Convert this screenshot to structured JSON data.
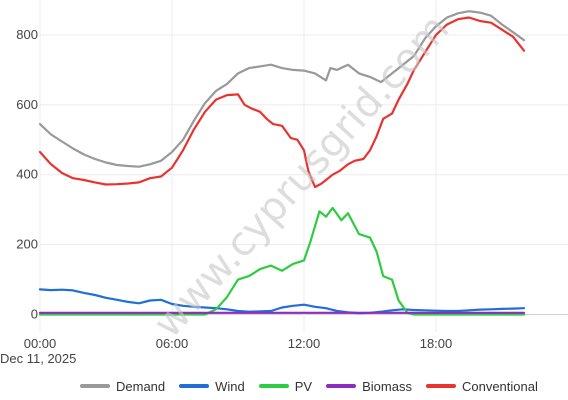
{
  "chart_data": {
    "type": "line",
    "watermark": "www.cyprusgrid.com",
    "x_start_label": "Dec 11, 2025",
    "x_ticks": [
      "00:00",
      "06:00",
      "12:00",
      "18:00"
    ],
    "x_tick_values": [
      0,
      6,
      12,
      18
    ],
    "xlim": [
      0,
      24
    ],
    "y_ticks": [
      0,
      200,
      400,
      600,
      800
    ],
    "ylim": [
      -50,
      900
    ],
    "legend_position": "bottom",
    "series": [
      {
        "name": "Demand",
        "color": "#999999",
        "points": [
          [
            0,
            545
          ],
          [
            0.5,
            515
          ],
          [
            1,
            495
          ],
          [
            1.5,
            475
          ],
          [
            2,
            458
          ],
          [
            2.5,
            445
          ],
          [
            3,
            435
          ],
          [
            3.5,
            428
          ],
          [
            4,
            425
          ],
          [
            4.5,
            423
          ],
          [
            5,
            430
          ],
          [
            5.5,
            440
          ],
          [
            6,
            465
          ],
          [
            6.5,
            500
          ],
          [
            7,
            555
          ],
          [
            7.5,
            605
          ],
          [
            8,
            640
          ],
          [
            8.5,
            660
          ],
          [
            9,
            690
          ],
          [
            9.5,
            705
          ],
          [
            10,
            710
          ],
          [
            10.5,
            715
          ],
          [
            11,
            705
          ],
          [
            11.5,
            700
          ],
          [
            12,
            698
          ],
          [
            12.5,
            690
          ],
          [
            13,
            670
          ],
          [
            13.2,
            705
          ],
          [
            13.5,
            700
          ],
          [
            14,
            715
          ],
          [
            14.5,
            690
          ],
          [
            15,
            680
          ],
          [
            15.5,
            665
          ],
          [
            16,
            690
          ],
          [
            16.5,
            715
          ],
          [
            17,
            740
          ],
          [
            17.5,
            790
          ],
          [
            18,
            825
          ],
          [
            18.5,
            850
          ],
          [
            19,
            862
          ],
          [
            19.5,
            868
          ],
          [
            20,
            864
          ],
          [
            20.5,
            855
          ],
          [
            21,
            830
          ],
          [
            21.5,
            808
          ],
          [
            22,
            785
          ]
        ]
      },
      {
        "name": "Wind",
        "color": "#1f6fd6",
        "points": [
          [
            0,
            72
          ],
          [
            0.5,
            70
          ],
          [
            1,
            71
          ],
          [
            1.5,
            69
          ],
          [
            2,
            62
          ],
          [
            2.5,
            56
          ],
          [
            3,
            48
          ],
          [
            3.5,
            42
          ],
          [
            4,
            36
          ],
          [
            4.5,
            32
          ],
          [
            5,
            40
          ],
          [
            5.5,
            42
          ],
          [
            6,
            30
          ],
          [
            6.5,
            25
          ],
          [
            7,
            22
          ],
          [
            7.5,
            20
          ],
          [
            8,
            18
          ],
          [
            8.5,
            15
          ],
          [
            9,
            10
          ],
          [
            9.5,
            8
          ],
          [
            10,
            9
          ],
          [
            10.5,
            10
          ],
          [
            11,
            20
          ],
          [
            11.5,
            25
          ],
          [
            12,
            28
          ],
          [
            12.5,
            22
          ],
          [
            13,
            18
          ],
          [
            13.5,
            10
          ],
          [
            14,
            6
          ],
          [
            14.5,
            4
          ],
          [
            15,
            5
          ],
          [
            15.5,
            8
          ],
          [
            16,
            12
          ],
          [
            16.5,
            15
          ],
          [
            17,
            13
          ],
          [
            17.5,
            12
          ],
          [
            18,
            11
          ],
          [
            18.5,
            10
          ],
          [
            19,
            10
          ],
          [
            19.5,
            12
          ],
          [
            20,
            14
          ],
          [
            20.5,
            15
          ],
          [
            21,
            16
          ],
          [
            21.5,
            17
          ],
          [
            22,
            18
          ]
        ]
      },
      {
        "name": "PV",
        "color": "#2ecc40",
        "points": [
          [
            0,
            0
          ],
          [
            6,
            0
          ],
          [
            7.5,
            0
          ],
          [
            8,
            15
          ],
          [
            8.5,
            50
          ],
          [
            9,
            100
          ],
          [
            9.5,
            110
          ],
          [
            10,
            130
          ],
          [
            10.5,
            140
          ],
          [
            11,
            125
          ],
          [
            11.5,
            145
          ],
          [
            12,
            155
          ],
          [
            12.3,
            210
          ],
          [
            12.7,
            295
          ],
          [
            13,
            280
          ],
          [
            13.3,
            305
          ],
          [
            13.7,
            270
          ],
          [
            14,
            290
          ],
          [
            14.5,
            230
          ],
          [
            15,
            220
          ],
          [
            15.3,
            180
          ],
          [
            15.6,
            110
          ],
          [
            16,
            100
          ],
          [
            16.3,
            40
          ],
          [
            16.7,
            5
          ],
          [
            17,
            0
          ],
          [
            22,
            0
          ]
        ]
      },
      {
        "name": "Biomass",
        "color": "#8e2dbd",
        "points": [
          [
            0,
            5
          ],
          [
            22,
            5
          ]
        ]
      },
      {
        "name": "Conventional",
        "color": "#e8332e",
        "points": [
          [
            0,
            465
          ],
          [
            0.5,
            430
          ],
          [
            1,
            405
          ],
          [
            1.5,
            390
          ],
          [
            2,
            385
          ],
          [
            2.5,
            378
          ],
          [
            3,
            372
          ],
          [
            3.5,
            373
          ],
          [
            4,
            375
          ],
          [
            4.5,
            378
          ],
          [
            5,
            390
          ],
          [
            5.5,
            395
          ],
          [
            6,
            420
          ],
          [
            6.5,
            470
          ],
          [
            7,
            530
          ],
          [
            7.5,
            580
          ],
          [
            8,
            615
          ],
          [
            8.5,
            628
          ],
          [
            9,
            630
          ],
          [
            9.3,
            600
          ],
          [
            9.6,
            590
          ],
          [
            10,
            580
          ],
          [
            10.3,
            560
          ],
          [
            10.6,
            545
          ],
          [
            11,
            540
          ],
          [
            11.4,
            505
          ],
          [
            11.7,
            500
          ],
          [
            12,
            470
          ],
          [
            12.2,
            410
          ],
          [
            12.5,
            365
          ],
          [
            12.8,
            375
          ],
          [
            13,
            385
          ],
          [
            13.3,
            400
          ],
          [
            13.6,
            410
          ],
          [
            14,
            430
          ],
          [
            14.3,
            440
          ],
          [
            14.7,
            445
          ],
          [
            15,
            470
          ],
          [
            15.3,
            510
          ],
          [
            15.6,
            560
          ],
          [
            16,
            575
          ],
          [
            16.3,
            615
          ],
          [
            16.7,
            660
          ],
          [
            17,
            700
          ],
          [
            17.5,
            750
          ],
          [
            18,
            800
          ],
          [
            18.5,
            830
          ],
          [
            19,
            845
          ],
          [
            19.5,
            850
          ],
          [
            20,
            840
          ],
          [
            20.5,
            835
          ],
          [
            21,
            815
          ],
          [
            21.5,
            795
          ],
          [
            22,
            755
          ]
        ]
      }
    ]
  }
}
